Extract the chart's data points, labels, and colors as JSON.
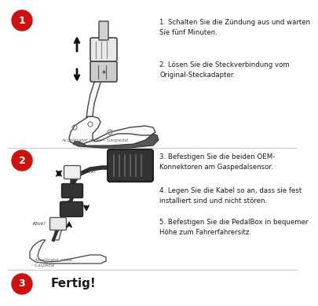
{
  "bg_color": "#ffffff",
  "separator_color": "#d0d0d0",
  "circle_color": "#cc1111",
  "circle_text_color": "#ffffff",
  "step1": {
    "number": "1",
    "text1": "1. Schalten Sie die Zündung aus und warten\nSie fünf Minuten.",
    "text2": "2. Lösen Sie die Steckverbindung vom\nOriginal-Steckadapter.",
    "caption": "Accelerator pedal - Gaspedal"
  },
  "step2": {
    "number": "2",
    "text3": "3. Befestigen Sie die beiden OEM-\nKonnektoren am Gaspedalsensor.",
    "text4": "4. Legen Sie die Kabel so an, dass sie fest\ninstalliert sind und nicht stören.",
    "text5": "5. Befestigen Sie die PedalBox in bequemer\nHöhe zum Fahrerfahrersitz.",
    "caption": "- Accelerator pedal\n- Gaspedal"
  },
  "step3": {
    "number": "3",
    "text": "Fertig!"
  }
}
